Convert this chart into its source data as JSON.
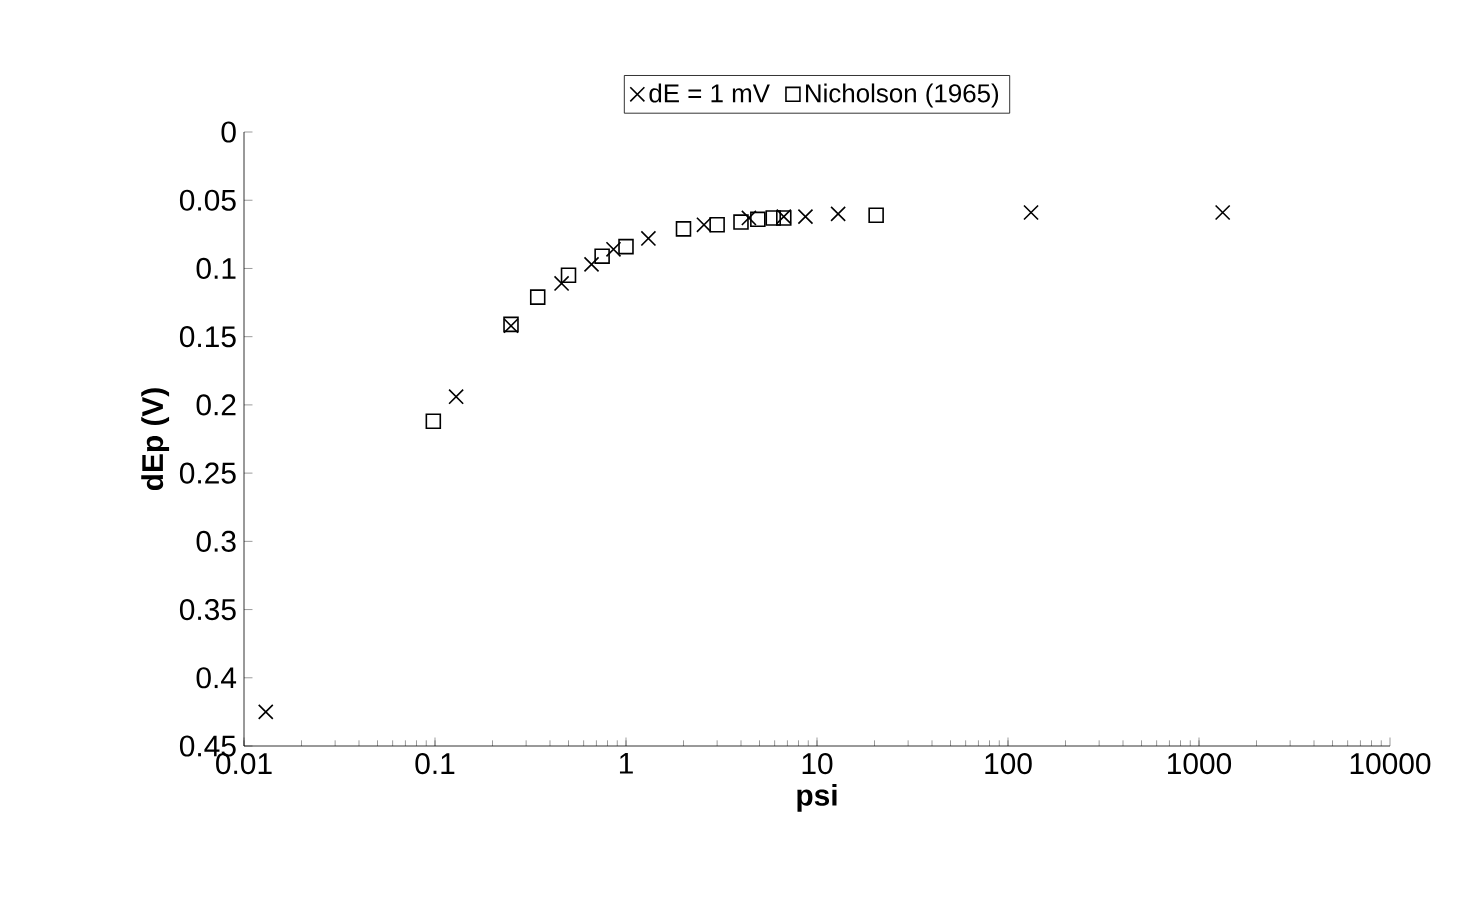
{
  "chart_data": {
    "type": "scatter",
    "xlabel": "psi",
    "ylabel": "dEp (V)",
    "log": "x",
    "xlim": [
      0.01,
      10000
    ],
    "xticks": [
      0.01,
      0.1,
      1,
      10,
      100,
      1000,
      10000
    ],
    "ylim": [
      0.45,
      0
    ],
    "yticks": [
      0,
      0.05,
      0.1,
      0.15,
      0.2,
      0.25,
      0.3,
      0.35,
      0.4,
      0.45
    ],
    "grid": false,
    "legend": "top",
    "series": [
      {
        "name": "dE = 1 mV",
        "color": "#000000",
        "marker": "cross",
        "x": [
          0.013,
          0.129,
          0.25,
          0.46,
          0.66,
          0.86,
          1.31,
          2.56,
          4.4,
          6.7,
          8.7,
          12.9,
          132,
          1330
        ],
        "values": [
          0.425,
          0.194,
          0.142,
          0.111,
          0.097,
          0.086,
          0.078,
          0.068,
          0.063,
          0.062,
          0.062,
          0.06,
          0.059,
          0.059
        ]
      },
      {
        "name": "Nicholson (1965)",
        "color": "#000000",
        "marker": "square",
        "x": [
          0.098,
          0.25,
          0.345,
          0.5,
          0.75,
          1.0,
          2.0,
          3.0,
          4.0,
          4.9,
          5.9,
          6.7,
          20.4
        ],
        "values": [
          0.212,
          0.141,
          0.121,
          0.105,
          0.091,
          0.084,
          0.071,
          0.068,
          0.066,
          0.064,
          0.063,
          0.063,
          0.061
        ]
      }
    ]
  }
}
